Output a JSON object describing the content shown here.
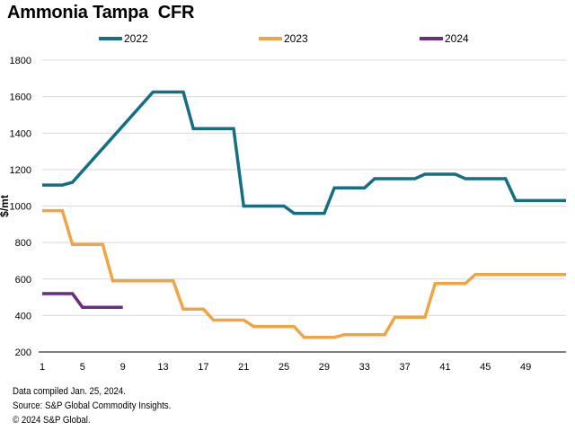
{
  "chart_data": {
    "type": "line",
    "title": "Ammonia Tampa  CFR",
    "xlabel": "",
    "ylabel": "$/mt",
    "ylim": [
      200,
      1800
    ],
    "yticks": [
      200,
      400,
      600,
      800,
      1000,
      1200,
      1400,
      1600,
      1800
    ],
    "xlim": [
      1,
      53
    ],
    "xticks": [
      1,
      5,
      9,
      13,
      17,
      21,
      25,
      29,
      33,
      37,
      41,
      45,
      49
    ],
    "grid": true,
    "legend_position": "top",
    "series": [
      {
        "name": "2022",
        "color": "#166e84",
        "x": [
          1,
          3,
          4,
          12,
          15,
          16,
          20,
          21,
          25,
          26,
          29,
          30,
          33,
          34,
          38,
          39,
          42,
          43,
          47,
          48,
          53
        ],
        "y": [
          1115,
          1115,
          1130,
          1625,
          1625,
          1425,
          1425,
          1000,
          1000,
          960,
          960,
          1100,
          1100,
          1150,
          1150,
          1175,
          1175,
          1150,
          1150,
          1030,
          1030
        ]
      },
      {
        "name": "2023",
        "color": "#f0a545",
        "x": [
          1,
          3,
          4,
          7,
          8,
          14,
          15,
          17,
          18,
          21,
          22,
          26,
          27,
          30,
          31,
          35,
          36,
          39,
          40,
          43,
          44,
          53
        ],
        "y": [
          975,
          975,
          790,
          790,
          590,
          590,
          435,
          435,
          375,
          375,
          340,
          340,
          280,
          280,
          295,
          295,
          390,
          390,
          575,
          575,
          625,
          625
        ]
      },
      {
        "name": "2024",
        "color": "#6b2c81",
        "x": [
          1,
          4,
          5,
          9
        ],
        "y": [
          520,
          520,
          445,
          445
        ]
      }
    ]
  },
  "footnotes": {
    "compiled": "Data compiled Jan. 25, 2024.",
    "source": "Source: S&P Global Commodity Insights.",
    "copyright": "© 2024 S&P Global."
  }
}
